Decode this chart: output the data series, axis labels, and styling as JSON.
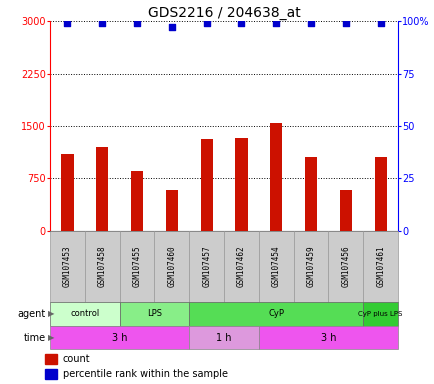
{
  "title": "GDS2216 / 204638_at",
  "samples": [
    "GSM107453",
    "GSM107458",
    "GSM107455",
    "GSM107460",
    "GSM107457",
    "GSM107462",
    "GSM107454",
    "GSM107459",
    "GSM107456",
    "GSM107461"
  ],
  "counts": [
    1100,
    1200,
    850,
    580,
    1320,
    1330,
    1540,
    1050,
    580,
    1050
  ],
  "percentile_ranks": [
    99,
    99,
    99,
    97,
    99,
    99,
    99,
    99,
    99,
    99
  ],
  "ylim_left": [
    0,
    3000
  ],
  "ylim_right": [
    0,
    100
  ],
  "yticks_left": [
    0,
    750,
    1500,
    2250,
    3000
  ],
  "yticks_right": [
    0,
    25,
    50,
    75,
    100
  ],
  "bar_color": "#cc1100",
  "dot_color": "#0000cc",
  "agent_groups": [
    {
      "label": "control",
      "start": 0,
      "end": 2,
      "color": "#ccffcc"
    },
    {
      "label": "LPS",
      "start": 2,
      "end": 4,
      "color": "#88ee88"
    },
    {
      "label": "CyP",
      "start": 4,
      "end": 9,
      "color": "#55dd55"
    },
    {
      "label": "CyP plus LPS",
      "start": 9,
      "end": 10,
      "color": "#33cc33"
    }
  ],
  "time_groups": [
    {
      "label": "3 h",
      "start": 0,
      "end": 4,
      "color": "#ee55ee"
    },
    {
      "label": "1 h",
      "start": 4,
      "end": 6,
      "color": "#dd99dd"
    },
    {
      "label": "3 h",
      "start": 6,
      "end": 10,
      "color": "#ee55ee"
    }
  ],
  "legend_items": [
    {
      "label": "count",
      "color": "#cc1100"
    },
    {
      "label": "percentile rank within the sample",
      "color": "#0000cc"
    }
  ],
  "sample_bg_color": "#cccccc",
  "sample_edge_color": "#999999"
}
